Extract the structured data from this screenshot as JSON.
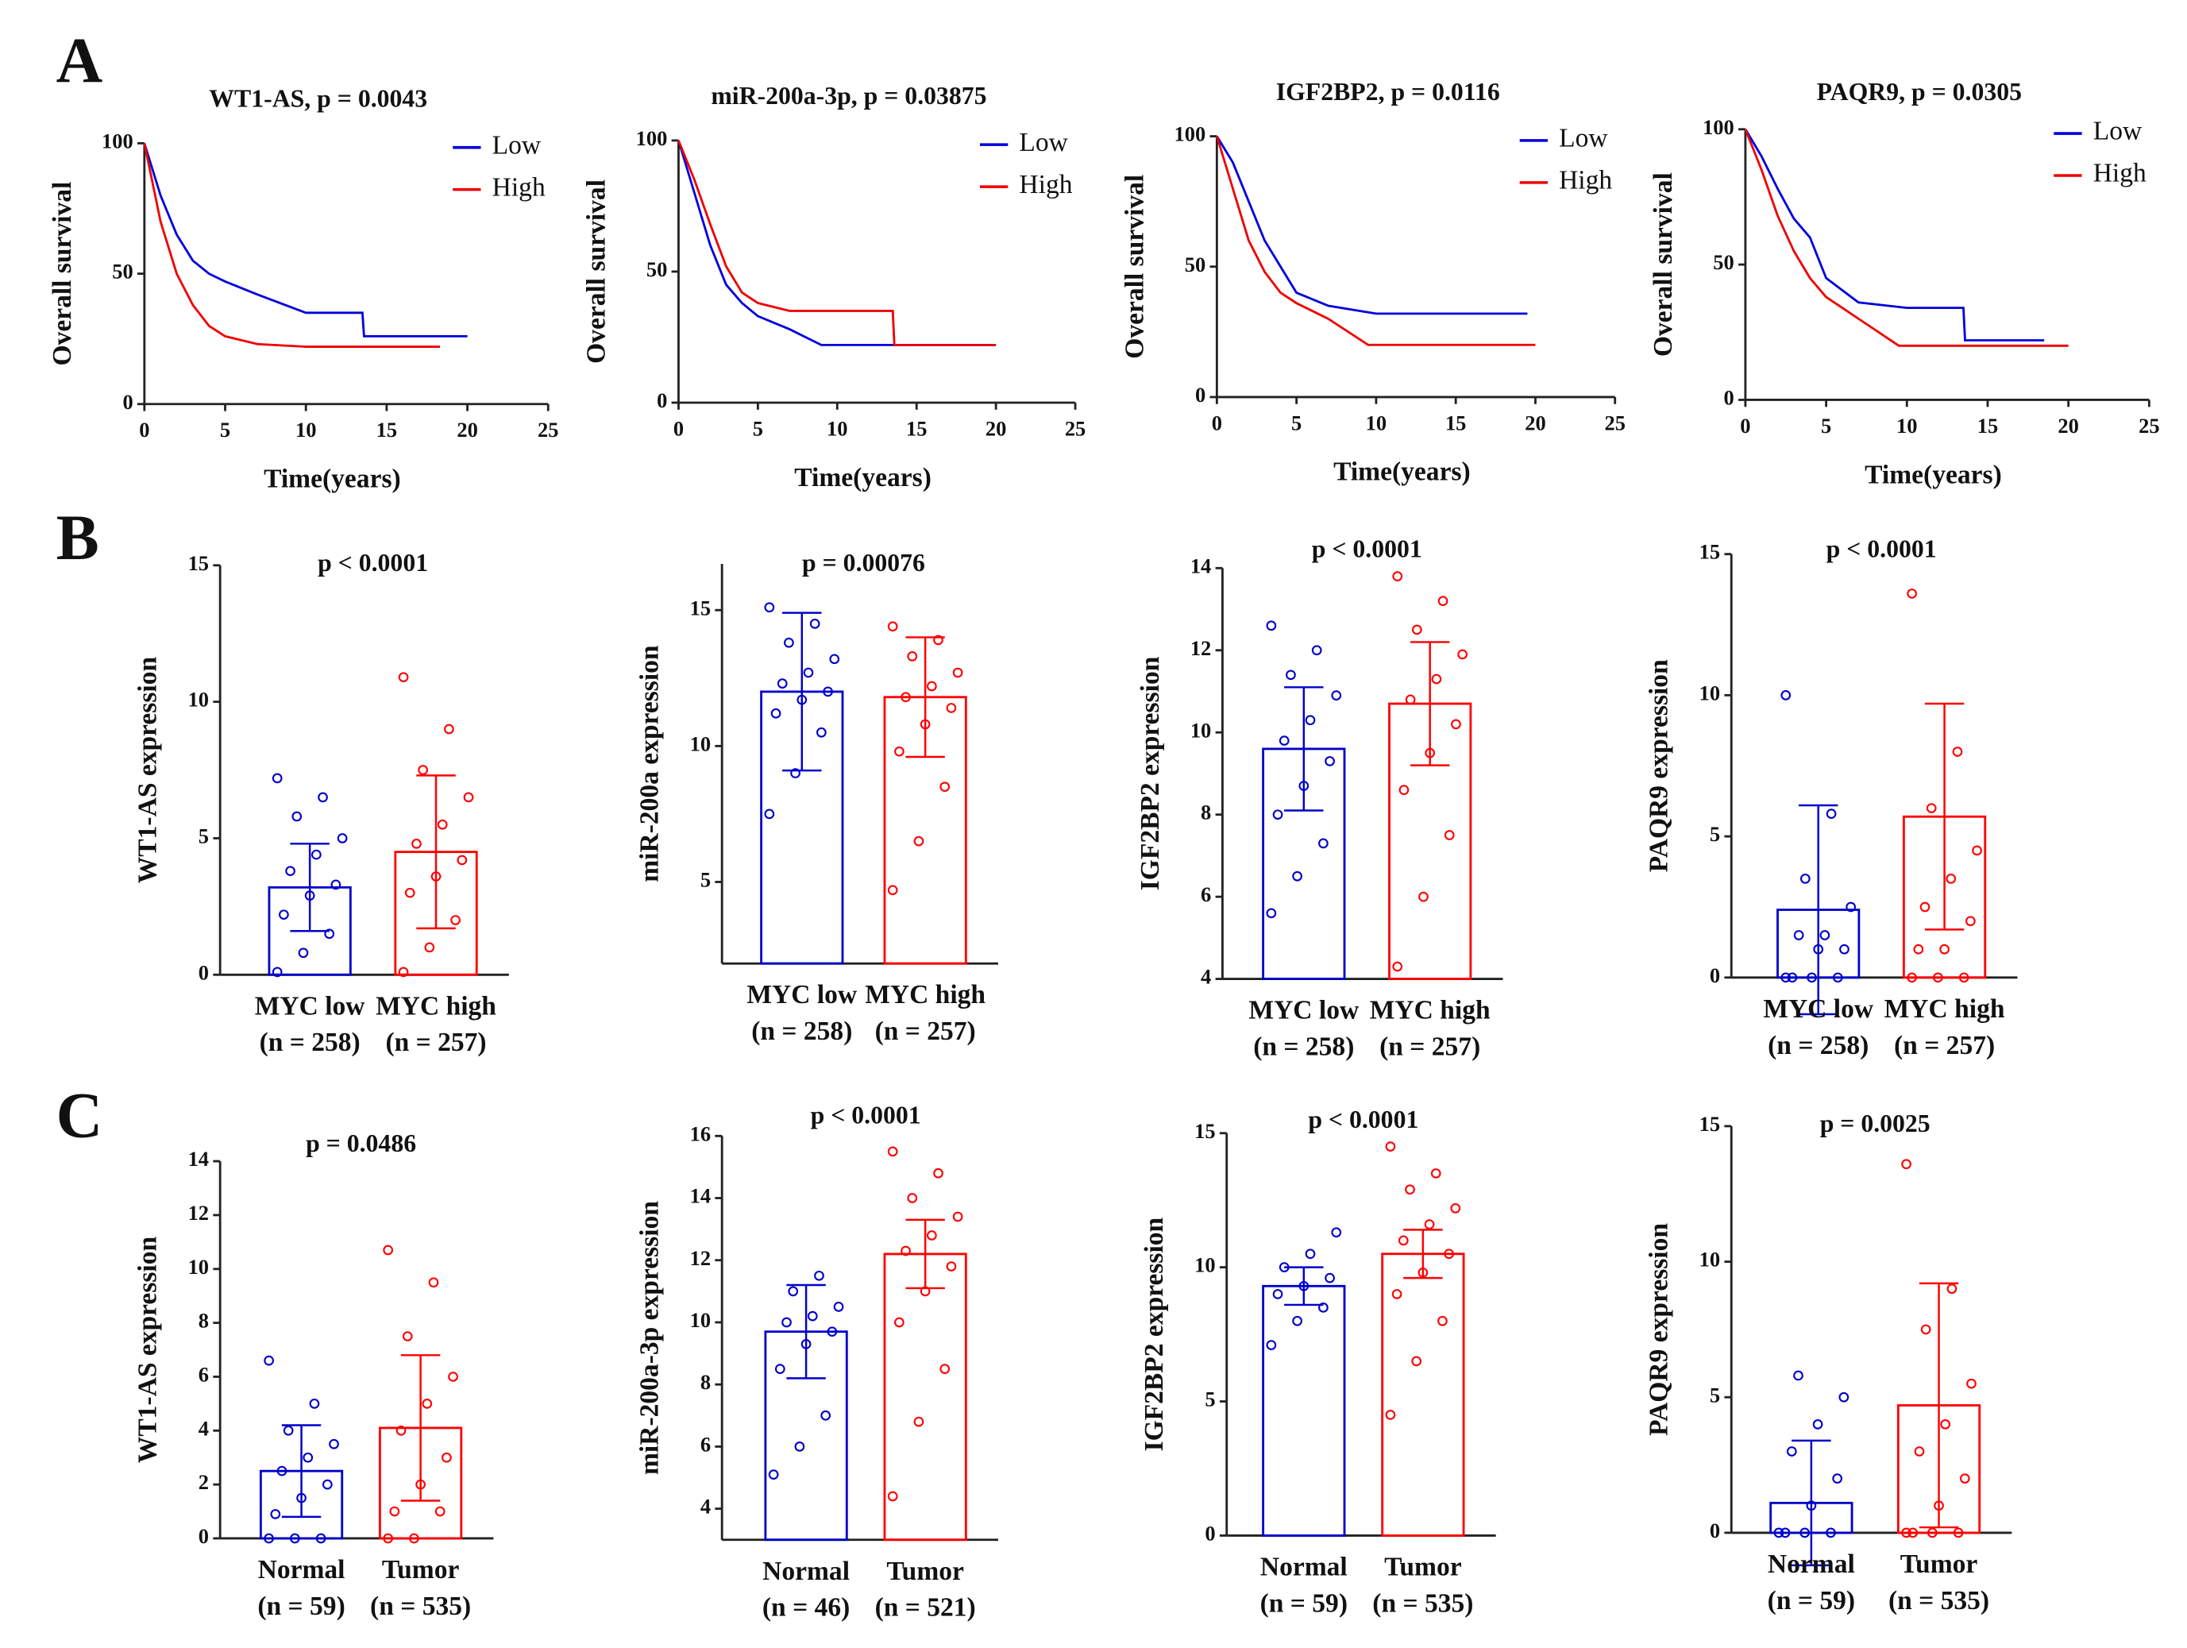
{
  "panel_labels": [
    "A",
    "B",
    "C"
  ],
  "chart_data": [
    {
      "type": "line",
      "title": "WT1-AS,  p = 0.0043",
      "xlabel": "Time(years)",
      "ylabel": "Overall survival",
      "xlim": [
        0,
        25
      ],
      "xticks": [
        0,
        5,
        10,
        15,
        20,
        25
      ],
      "ylim": [
        0,
        100
      ],
      "yticks": [
        0,
        50,
        100
      ],
      "series": [
        {
          "name": "Low",
          "color": "#0000dd",
          "x": [
            0,
            1,
            2,
            3,
            4,
            5,
            7,
            10,
            13.5,
            13.6,
            20
          ],
          "values": [
            100,
            80,
            65,
            55,
            50,
            47,
            42,
            35,
            35,
            26,
            26
          ]
        },
        {
          "name": "High",
          "color": "#ee0000",
          "x": [
            0,
            1,
            2,
            3,
            4,
            5,
            7,
            10,
            18.3
          ],
          "values": [
            100,
            70,
            50,
            38,
            30,
            26,
            23,
            22,
            22
          ]
        }
      ]
    },
    {
      "type": "line",
      "title": "miR-200a-3p,  p = 0.03875",
      "xlabel": "Time(years)",
      "ylabel": "Overall survival",
      "xlim": [
        0,
        25
      ],
      "xticks": [
        0,
        5,
        10,
        15,
        20,
        25
      ],
      "ylim": [
        0,
        100
      ],
      "yticks": [
        0,
        50,
        100
      ],
      "series": [
        {
          "name": "Low",
          "color": "#0000dd",
          "x": [
            0,
            1,
            2,
            3,
            4,
            5,
            7,
            9,
            11,
            20
          ],
          "values": [
            100,
            80,
            60,
            45,
            38,
            33,
            28,
            22,
            22,
            22
          ]
        },
        {
          "name": "High",
          "color": "#ee0000",
          "x": [
            0,
            1,
            2,
            3,
            4,
            5,
            7,
            13.5,
            13.6,
            20
          ],
          "values": [
            100,
            85,
            68,
            52,
            42,
            38,
            35,
            35,
            22,
            22
          ]
        }
      ]
    },
    {
      "type": "line",
      "title": "IGF2BP2,  p = 0.0116",
      "xlabel": "Time(years)",
      "ylabel": "Overall survival",
      "xlim": [
        0,
        25
      ],
      "xticks": [
        0,
        5,
        10,
        15,
        20,
        25
      ],
      "ylim": [
        0,
        100
      ],
      "yticks": [
        0,
        50,
        100
      ],
      "series": [
        {
          "name": "Low",
          "color": "#0000dd",
          "x": [
            0,
            1,
            2,
            3,
            4,
            5,
            7,
            10,
            19.5
          ],
          "values": [
            100,
            90,
            75,
            60,
            50,
            40,
            35,
            32,
            32
          ]
        },
        {
          "name": "High",
          "color": "#ee0000",
          "x": [
            0,
            1,
            2,
            3,
            4,
            5,
            7,
            9.5,
            20
          ],
          "values": [
            100,
            80,
            60,
            48,
            40,
            36,
            30,
            20,
            20
          ]
        }
      ]
    },
    {
      "type": "line",
      "title": "PAQR9,  p = 0.0305",
      "xlabel": "Time(years)",
      "ylabel": "Overall survival",
      "xlim": [
        0,
        25
      ],
      "xticks": [
        0,
        5,
        10,
        15,
        20,
        25
      ],
      "ylim": [
        0,
        100
      ],
      "yticks": [
        0,
        50,
        100
      ],
      "series": [
        {
          "name": "Low",
          "color": "#0000dd",
          "x": [
            0,
            1,
            2,
            3,
            4,
            5,
            7,
            10,
            13.5,
            13.6,
            18.5
          ],
          "values": [
            100,
            90,
            78,
            67,
            60,
            45,
            36,
            34,
            34,
            22,
            22
          ]
        },
        {
          "name": "High",
          "color": "#ee0000",
          "x": [
            0,
            1,
            2,
            3,
            4,
            5,
            7,
            9.5,
            20
          ],
          "values": [
            100,
            85,
            68,
            55,
            45,
            38,
            30,
            20,
            20
          ]
        }
      ]
    },
    {
      "type": "bar",
      "title": "p < 0.0001",
      "ylabel": "WT1-AS expression",
      "categories": [
        "MYC low",
        "MYC high"
      ],
      "category_counts": [
        "(n = 258)",
        "(n = 257)"
      ],
      "colors": [
        "#0000cc",
        "#ff0000"
      ],
      "ylim": [
        0,
        15
      ],
      "yticks": [
        0,
        5,
        10,
        15
      ],
      "values": [
        3.2,
        4.5
      ],
      "errors": [
        1.6,
        2.8
      ],
      "points": [
        [
          0.1,
          0.8,
          1.5,
          2.2,
          2.9,
          3.3,
          3.8,
          4.4,
          5.0,
          5.8,
          6.5,
          7.2
        ],
        [
          0.1,
          1.0,
          2.0,
          3.0,
          3.6,
          4.2,
          4.8,
          5.5,
          6.5,
          7.5,
          9.0,
          10.9
        ]
      ]
    },
    {
      "type": "bar",
      "title": "p = 0.00076",
      "ylabel": "miR-200a expression",
      "categories": [
        "MYC low",
        "MYC high"
      ],
      "category_counts": [
        "(n = 258)",
        "(n = 257)"
      ],
      "colors": [
        "#0000cc",
        "#ff0000"
      ],
      "ylim": [
        2,
        16.7
      ],
      "yticks": [
        5,
        10,
        15
      ],
      "values": [
        12.0,
        11.8
      ],
      "errors": [
        2.9,
        2.2
      ],
      "points": [
        [
          7.5,
          9.0,
          10.5,
          11.2,
          11.7,
          12.0,
          12.3,
          12.7,
          13.2,
          13.8,
          14.5,
          15.1
        ],
        [
          4.7,
          6.5,
          8.5,
          9.8,
          10.8,
          11.4,
          11.8,
          12.2,
          12.7,
          13.3,
          13.9,
          14.4
        ]
      ]
    },
    {
      "type": "bar",
      "title": "p < 0.0001",
      "ylabel": "IGF2BP2 expression",
      "categories": [
        "MYC low",
        "MYC high"
      ],
      "category_counts": [
        "(n = 258)",
        "(n = 257)"
      ],
      "colors": [
        "#0000cc",
        "#ff0000"
      ],
      "ylim": [
        4,
        14
      ],
      "yticks": [
        4,
        6,
        8,
        10,
        12,
        14
      ],
      "values": [
        9.6,
        10.7
      ],
      "errors": [
        1.5,
        1.5
      ],
      "points": [
        [
          5.6,
          6.5,
          7.3,
          8.0,
          8.7,
          9.3,
          9.8,
          10.3,
          10.9,
          11.4,
          12.0,
          12.6
        ],
        [
          4.3,
          6.0,
          7.5,
          8.6,
          9.5,
          10.2,
          10.8,
          11.3,
          11.9,
          12.5,
          13.2,
          13.8
        ]
      ]
    },
    {
      "type": "bar",
      "title": "p < 0.0001",
      "ylabel": "PAQR9 expression",
      "categories": [
        "MYC low",
        "MYC high"
      ],
      "category_counts": [
        "(n = 258)",
        "(n = 257)"
      ],
      "colors": [
        "#0000cc",
        "#ff0000"
      ],
      "ylim": [
        0,
        15
      ],
      "yticks": [
        0,
        5,
        10,
        15
      ],
      "values": [
        2.4,
        5.7
      ],
      "errors": [
        3.7,
        4.0
      ],
      "points": [
        [
          0,
          0,
          0,
          0,
          1.0,
          1.0,
          1.5,
          1.5,
          2.5,
          3.5,
          5.8,
          10.0
        ],
        [
          0,
          0,
          0,
          1.0,
          1.0,
          2.0,
          2.5,
          3.5,
          4.5,
          6.0,
          8.0,
          13.6
        ]
      ]
    },
    {
      "type": "bar",
      "title": "p = 0.0486",
      "ylabel": "WT1-AS expression",
      "categories": [
        "Normal",
        "Tumor"
      ],
      "category_counts": [
        "(n = 59)",
        "(n = 535)"
      ],
      "colors": [
        "#0000cc",
        "#ff0000"
      ],
      "ylim": [
        0,
        14
      ],
      "yticks": [
        0,
        2,
        4,
        6,
        8,
        10,
        12,
        14
      ],
      "values": [
        2.5,
        4.1
      ],
      "errors": [
        1.7,
        2.7
      ],
      "points": [
        [
          0,
          0,
          0,
          0.9,
          1.5,
          2.0,
          2.5,
          3.0,
          3.5,
          4.0,
          5.0,
          6.6
        ],
        [
          0,
          0,
          1.0,
          1.0,
          2.0,
          3.0,
          4.0,
          5.0,
          6.0,
          7.5,
          9.5,
          10.7
        ]
      ]
    },
    {
      "type": "bar",
      "title": "p < 0.0001",
      "ylabel": "miR-200a-3p expression",
      "categories": [
        "Normal",
        "Tumor"
      ],
      "category_counts": [
        "(n = 46)",
        "(n = 521)"
      ],
      "colors": [
        "#0000cc",
        "#ff0000"
      ],
      "ylim": [
        3,
        16
      ],
      "yticks": [
        4,
        6,
        8,
        10,
        12,
        14,
        16
      ],
      "values": [
        9.7,
        12.2
      ],
      "errors": [
        1.5,
        1.1
      ],
      "points": [
        [
          5.1,
          6.0,
          7.0,
          8.5,
          9.3,
          9.7,
          10.0,
          10.2,
          10.5,
          11.0,
          11.5
        ],
        [
          4.4,
          6.8,
          8.5,
          10.0,
          11.0,
          11.8,
          12.3,
          12.8,
          13.4,
          14.0,
          14.8,
          15.5
        ]
      ]
    },
    {
      "type": "bar",
      "title": "p < 0.0001",
      "ylabel": "IGF2BP2 expression",
      "categories": [
        "Normal",
        "Tumor"
      ],
      "category_counts": [
        "(n = 59)",
        "(n = 535)"
      ],
      "colors": [
        "#0000cc",
        "#ff0000"
      ],
      "ylim": [
        0,
        15
      ],
      "yticks": [
        0,
        5,
        10,
        15
      ],
      "values": [
        9.3,
        10.5
      ],
      "errors": [
        0.7,
        0.9
      ],
      "points": [
        [
          7.1,
          8.0,
          8.5,
          9.0,
          9.3,
          9.6,
          10.0,
          10.5,
          11.3
        ],
        [
          4.5,
          6.5,
          8.0,
          9.0,
          9.8,
          10.5,
          11.0,
          11.6,
          12.2,
          12.9,
          13.5,
          14.5
        ]
      ]
    },
    {
      "type": "bar",
      "title": "p = 0.0025",
      "ylabel": "PAQR9 expression",
      "categories": [
        "Normal",
        "Tumor"
      ],
      "category_counts": [
        "(n = 59)",
        "(n = 535)"
      ],
      "colors": [
        "#0000cc",
        "#ff0000"
      ],
      "ylim": [
        0,
        15
      ],
      "yticks": [
        0,
        5,
        10,
        15
      ],
      "values": [
        1.1,
        4.7
      ],
      "errors": [
        2.3,
        4.5
      ],
      "points": [
        [
          0,
          0,
          0,
          0,
          1.0,
          2.0,
          3.0,
          4.0,
          5.0,
          5.8
        ],
        [
          0,
          0,
          0,
          0,
          1.0,
          2.0,
          3.0,
          4.0,
          5.5,
          7.5,
          9.0,
          13.6
        ]
      ]
    }
  ]
}
